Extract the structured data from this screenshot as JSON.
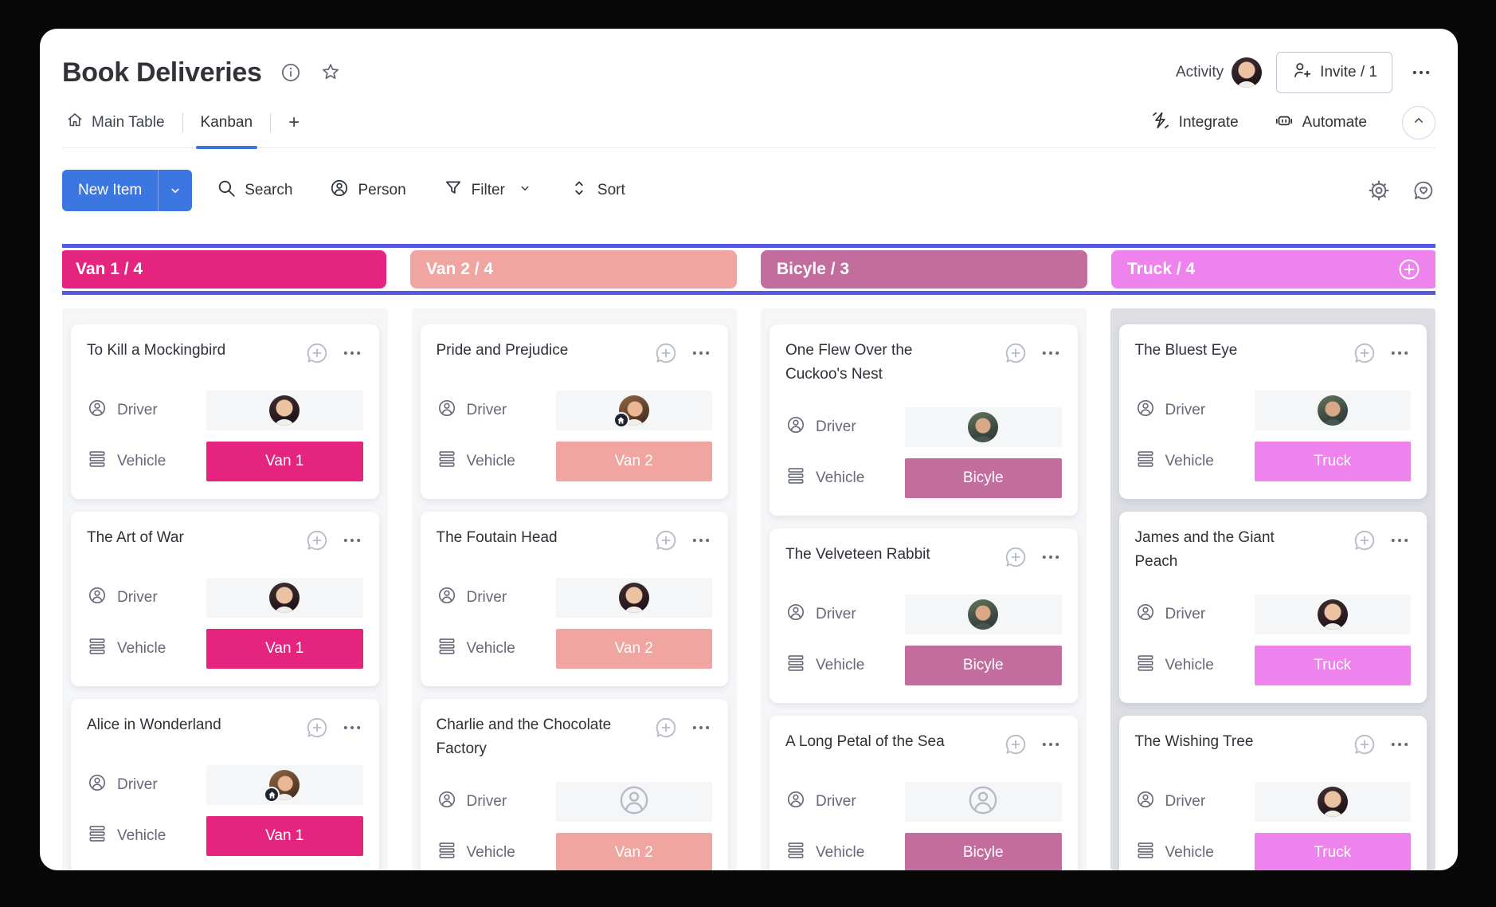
{
  "header": {
    "title": "Book Deliveries",
    "activity_label": "Activity",
    "invite_label": "Invite / 1"
  },
  "tabs": {
    "items": [
      {
        "label": "Main Table",
        "icon": "home-icon",
        "active": false
      },
      {
        "label": "Kanban",
        "active": true
      },
      {
        "label": "+",
        "active": false
      }
    ],
    "right": [
      {
        "label": "Integrate",
        "icon": "integrate-icon"
      },
      {
        "label": "Automate",
        "icon": "automate-icon"
      }
    ]
  },
  "toolbar": {
    "new_item_label": "New Item",
    "actions": [
      {
        "label": "Search",
        "icon": "search-icon"
      },
      {
        "label": "Person",
        "icon": "person-icon"
      },
      {
        "label": "Filter",
        "icon": "filter-icon",
        "has_chevron": true
      },
      {
        "label": "Sort",
        "icon": "sort-icon"
      }
    ]
  },
  "board": {
    "labels": {
      "driver": "Driver",
      "vehicle": "Vehicle"
    },
    "columns": [
      {
        "title": "Van 1 / 4",
        "color": "#e5247f",
        "header_has_add": false,
        "highlight": false,
        "cards": [
          {
            "title": "To Kill a Mockingbird",
            "driver": {
              "avatar": "a"
            },
            "vehicle": {
              "label": "Van 1",
              "color": "#e5247f"
            }
          },
          {
            "title": "The Art of War",
            "driver": {
              "avatar": "a"
            },
            "vehicle": {
              "label": "Van 1",
              "color": "#e5247f"
            }
          },
          {
            "title": "Alice in Wonderland",
            "driver": {
              "avatar": "b",
              "badge": "home"
            },
            "vehicle": {
              "label": "Van 1",
              "color": "#e5247f"
            }
          },
          {
            "partial": true
          }
        ]
      },
      {
        "title": "Van 2 / 4",
        "color": "#f0a5a1",
        "header_has_add": false,
        "highlight": false,
        "cards": [
          {
            "title": "Pride and Prejudice",
            "driver": {
              "avatar": "b",
              "badge": "home"
            },
            "vehicle": {
              "label": "Van 2",
              "color": "#f0a5a1"
            }
          },
          {
            "title": "The Foutain Head",
            "driver": {
              "avatar": "a"
            },
            "vehicle": {
              "label": "Van 2",
              "color": "#f0a5a1"
            }
          },
          {
            "title": "Charlie and the Chocolate\nFactory",
            "driver": {
              "empty": true
            },
            "vehicle": {
              "label": "Van 2",
              "color": "#f0a5a1"
            }
          }
        ]
      },
      {
        "title": "Bicyle / 3",
        "color": "#c36d9f",
        "header_has_add": false,
        "highlight": false,
        "cards": [
          {
            "title": "One Flew Over the\nCuckoo's Nest",
            "driver": {
              "avatar": "c"
            },
            "vehicle": {
              "label": "Bicyle",
              "color": "#c36d9f"
            }
          },
          {
            "title": "The Velveteen Rabbit",
            "driver": {
              "avatar": "c"
            },
            "vehicle": {
              "label": "Bicyle",
              "color": "#c36d9f"
            }
          },
          {
            "title": "A Long Petal of the Sea",
            "driver": {
              "empty": true
            },
            "vehicle": {
              "label": "Bicyle",
              "color": "#c36d9f"
            }
          }
        ]
      },
      {
        "title": "Truck / 4",
        "color": "#ef83ee",
        "header_has_add": true,
        "highlight": true,
        "cards": [
          {
            "title": "The Bluest Eye",
            "driver": {
              "avatar": "c"
            },
            "vehicle": {
              "label": "Truck",
              "color": "#ef83ee"
            }
          },
          {
            "title": "James and the Giant\nPeach",
            "driver": {
              "avatar": "a"
            },
            "vehicle": {
              "label": "Truck",
              "color": "#ef83ee"
            }
          },
          {
            "title": "The Wishing Tree",
            "driver": {
              "avatar": "a"
            },
            "vehicle": {
              "label": "Truck",
              "color": "#ef83ee"
            }
          }
        ]
      }
    ]
  },
  "colors": {
    "focus_ring": "#5659df",
    "primary_button": "#3b76e1",
    "active_tab_underline": "#3a74dd",
    "van1": "#e5247f",
    "van2": "#f0a5a1",
    "bicycle": "#c36d9f",
    "truck": "#ef83ee"
  }
}
